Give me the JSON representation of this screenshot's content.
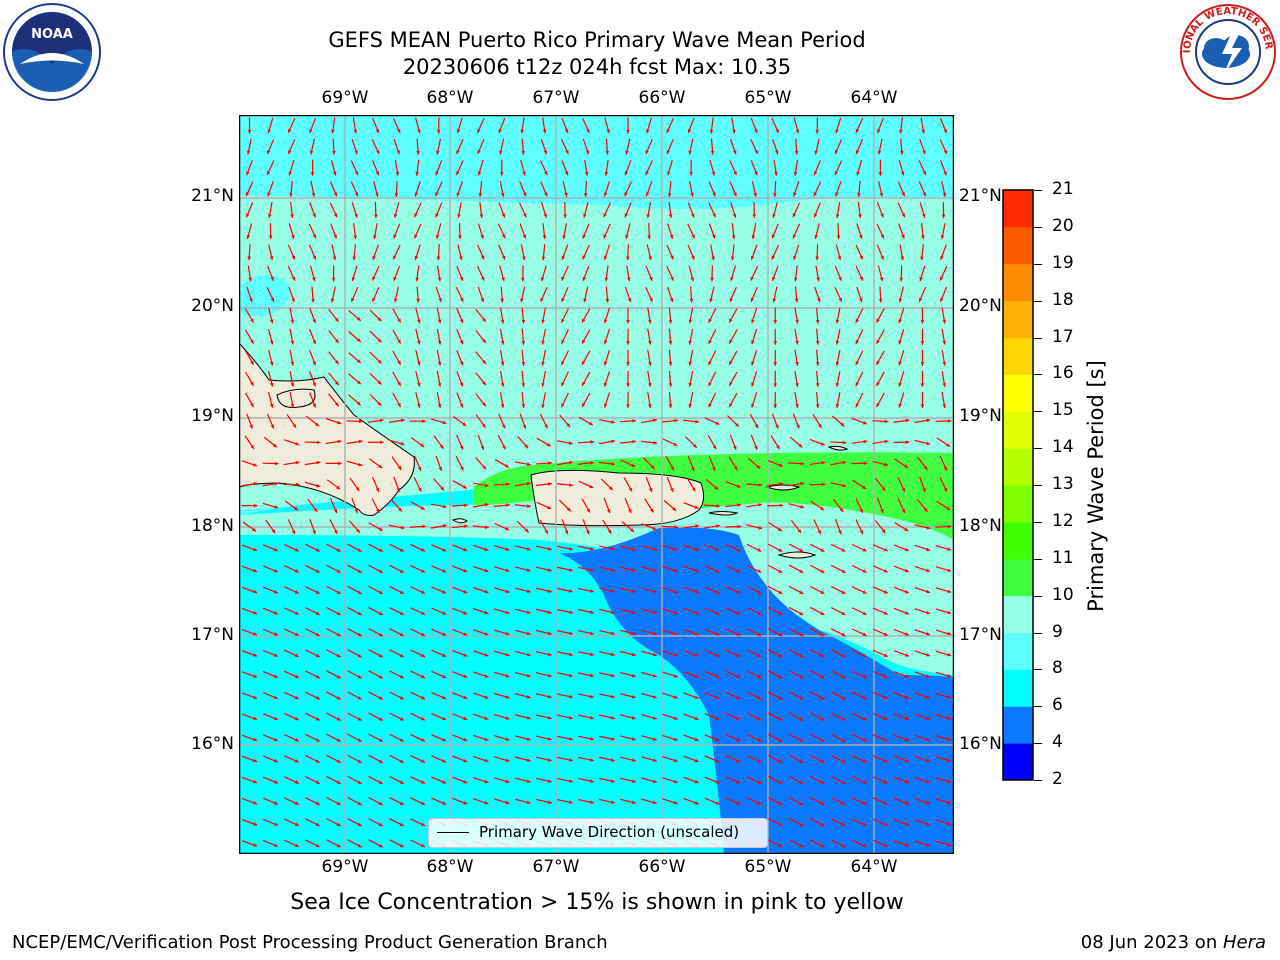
{
  "title_line1": "GEFS MEAN Puerto Rico Primary Wave Mean Period",
  "title_line2": "20230606 t12z 024h fcst   Max: 10.35",
  "logos": {
    "left": "NOAA",
    "right": "NATIONAL WEATHER SERVICE"
  },
  "axes": {
    "lon_ticks": [
      "69°W",
      "68°W",
      "67°W",
      "66°W",
      "65°W",
      "64°W"
    ],
    "lat_ticks": [
      "21°N",
      "20°N",
      "19°N",
      "18°N",
      "17°N",
      "16°N"
    ]
  },
  "legend": {
    "label": "Primary Wave Direction (unscaled)"
  },
  "colorbar": {
    "label": "Primary Wave Period [s]",
    "ticks": [
      "2",
      "4",
      "6",
      "8",
      "9",
      "10",
      "11",
      "12",
      "13",
      "14",
      "15",
      "16",
      "17",
      "18",
      "19",
      "20",
      "21"
    ],
    "colors": [
      "#0000ff",
      "#0a78ff",
      "#00ffff",
      "#5effff",
      "#96ffe6",
      "#40ff40",
      "#40ff00",
      "#80ff00",
      "#b4ff00",
      "#e0ff00",
      "#ffff00",
      "#ffd700",
      "#ffb000",
      "#ff8c00",
      "#ff5a00",
      "#ff2a00",
      "#ff0000"
    ]
  },
  "map_colors": {
    "deep": "#0a78ff",
    "mid": "#00ffff",
    "light": "#5effff",
    "pale": "#96ffe6",
    "green": "#40ff40",
    "land": "#efecdc",
    "arrow": "#ff0000"
  },
  "sea_ice_note": "Sea Ice Concentration > 15% is shown in pink to yellow",
  "footer_left": "NCEP/EMC/Verification Post Processing Product Generation Branch",
  "footer_right_date": "08 Jun 2023 on ",
  "footer_right_host": "Hera"
}
